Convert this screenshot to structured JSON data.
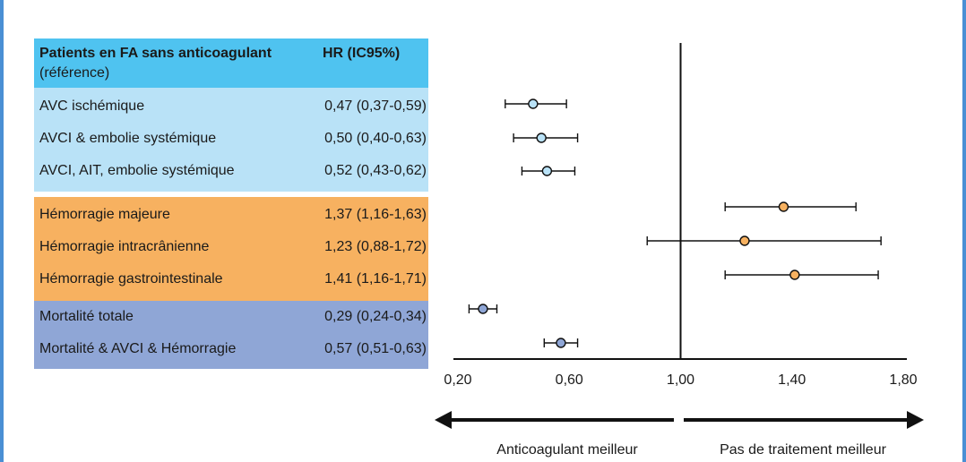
{
  "header": {
    "title": "Patients en FA sans anticoagulant",
    "subtitle": "(référence)",
    "hr_label": "HR (IC95%)"
  },
  "rows": [
    {
      "label": "AVC ischémique",
      "hr_text": "0,47 (0,37-0,59)",
      "group": "blue"
    },
    {
      "label": "AVCI & embolie systémique",
      "hr_text": "0,50 (0,40-0,63)",
      "group": "blue"
    },
    {
      "label": "AVCI, AIT, embolie systémique",
      "hr_text": "0,52 (0,43-0,62)",
      "group": "blue"
    },
    {
      "label": "Hémorragie majeure",
      "hr_text": "1,37 (1,16-1,63)",
      "group": "orange"
    },
    {
      "label": "Hémorragie intracrânienne",
      "hr_text": "1,23 (0,88-1,72)",
      "group": "orange"
    },
    {
      "label": "Hémorragie gastrointestinale",
      "hr_text": "1,41 (1,16-1,71)",
      "group": "orange"
    },
    {
      "label": "Mortalité totale",
      "hr_text": "0,29 (0,24-0,34)",
      "group": "purple"
    },
    {
      "label": "Mortalité & AVCI & Hémorragie",
      "hr_text": "0,57 (0,51-0,63)",
      "group": "purple"
    }
  ],
  "arrows": {
    "left_label": "Anticoagulant meilleur",
    "right_label": "Pas de traitement meilleur"
  },
  "colors": {
    "header": "#4fc3f0",
    "blue_group": "#b9e2f7",
    "orange_group": "#f7b160",
    "purple_group": "#8fa6d6",
    "marker_blue": "#b9e2f7",
    "marker_orange": "#f7b160",
    "marker_purple": "#8fa6d6"
  },
  "chart_data": {
    "type": "scatter",
    "subtype": "forest-plot",
    "xlim": [
      0.2,
      1.8
    ],
    "reference_line": 1.0,
    "x_ticks": [
      0.2,
      0.6,
      1.0,
      1.4,
      1.8
    ],
    "x_tick_labels": [
      "0,20",
      "0,60",
      "1,00",
      "1,40",
      "1,80"
    ],
    "grid": false,
    "points": [
      {
        "name": "AVC ischémique",
        "hr": 0.47,
        "low": 0.37,
        "high": 0.59
      },
      {
        "name": "AVCI & embolie systémique",
        "hr": 0.5,
        "low": 0.4,
        "high": 0.63
      },
      {
        "name": "AVCI, AIT, embolie systémique",
        "hr": 0.52,
        "low": 0.43,
        "high": 0.62
      },
      {
        "name": "Hémorragie majeure",
        "hr": 1.37,
        "low": 1.16,
        "high": 1.63
      },
      {
        "name": "Hémorragie intracrânienne",
        "hr": 1.23,
        "low": 0.88,
        "high": 1.72
      },
      {
        "name": "Hémorragie gastrointestinale",
        "hr": 1.41,
        "low": 1.16,
        "high": 1.71
      },
      {
        "name": "Mortalité totale",
        "hr": 0.29,
        "low": 0.24,
        "high": 0.34
      },
      {
        "name": "Mortalité & AVCI & Hémorragie",
        "hr": 0.57,
        "low": 0.51,
        "high": 0.63
      }
    ]
  }
}
